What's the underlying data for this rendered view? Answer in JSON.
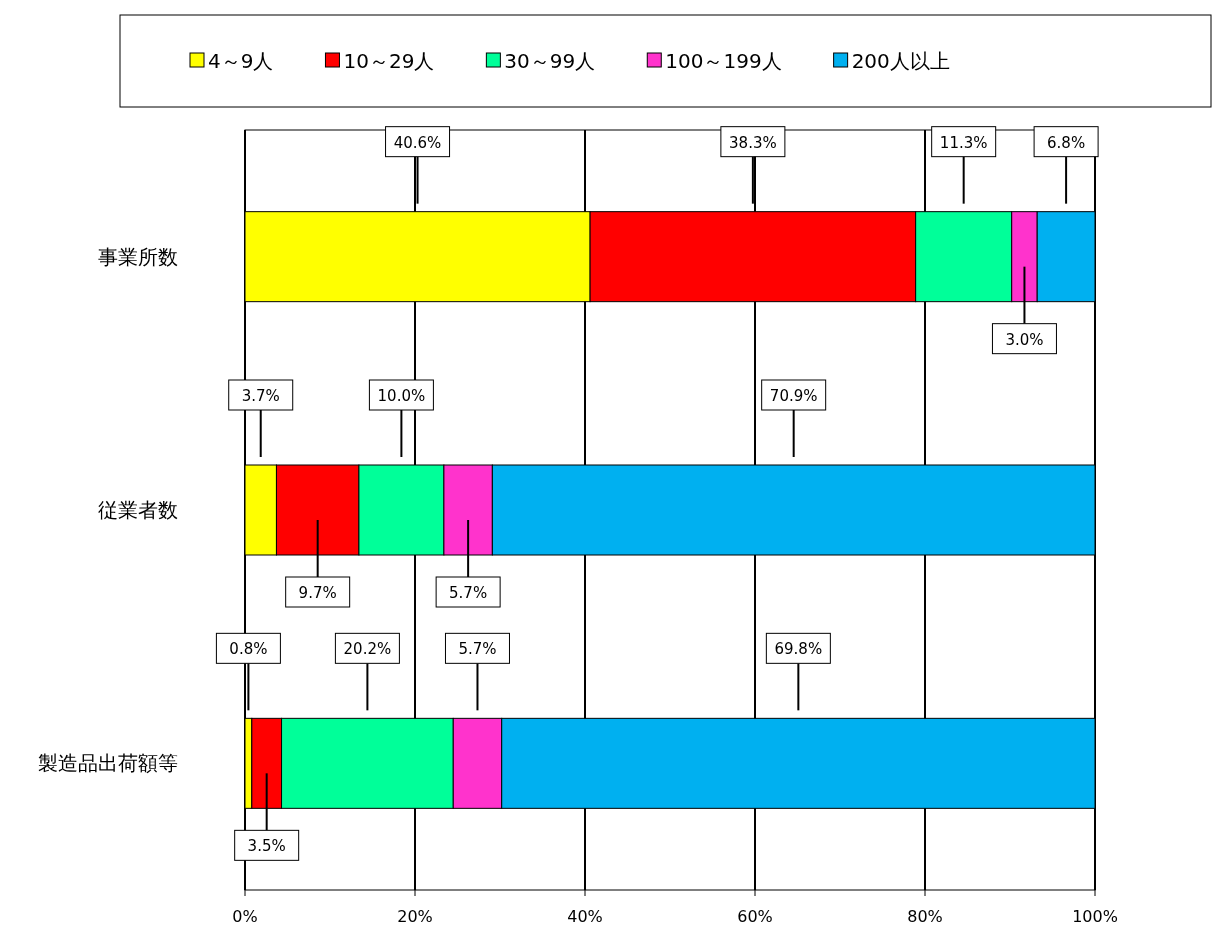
{
  "chart_data": {
    "type": "bar",
    "orientation": "horizontal",
    "stacked": true,
    "categories": [
      "事業所数",
      "従業者数",
      "製造品出荷額等"
    ],
    "series": [
      {
        "name": "4～9人",
        "color": "#ffff00",
        "values": [
          40.6,
          3.7,
          0.8
        ],
        "value_labels": [
          "40.6%",
          "3.7%",
          "0.8%"
        ]
      },
      {
        "name": "10～29人",
        "color": "#ff0000",
        "values": [
          38.3,
          9.7,
          3.5
        ],
        "value_labels": [
          "38.3%",
          "9.7%",
          "3.5%"
        ]
      },
      {
        "name": "30～99人",
        "color": "#00ff99",
        "values": [
          11.3,
          10.0,
          20.2
        ],
        "value_labels": [
          "11.3%",
          "10.0%",
          "20.2%"
        ]
      },
      {
        "name": "100～199人",
        "color": "#ff33cc",
        "values": [
          3.0,
          5.7,
          5.7
        ],
        "value_labels": [
          "3.0%",
          "5.7%",
          "5.7%"
        ]
      },
      {
        "name": "200人以上",
        "color": "#00b0f0",
        "values": [
          6.8,
          70.9,
          69.8
        ],
        "value_labels": [
          "6.8%",
          "70.9%",
          "69.8%"
        ]
      }
    ],
    "xlim": [
      0,
      100
    ],
    "xticks": [
      {
        "value": 0,
        "label": "0%"
      },
      {
        "value": 20,
        "label": "20%"
      },
      {
        "value": 40,
        "label": "40%"
      },
      {
        "value": 60,
        "label": "60%"
      },
      {
        "value": 80,
        "label": "80%"
      },
      {
        "value": 100,
        "label": "100%"
      }
    ],
    "grid": "x",
    "legend": "top"
  }
}
